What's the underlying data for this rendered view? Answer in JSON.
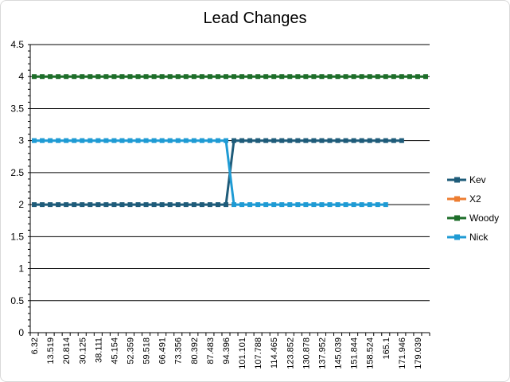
{
  "chart_data": {
    "type": "line",
    "title": "Lead Changes",
    "xlabel": "",
    "ylabel": "",
    "ylim": [
      0,
      4.5
    ],
    "y_ticks": [
      "0",
      "0.5",
      "1",
      "1.5",
      "2",
      "2.5",
      "3",
      "3.5",
      "4",
      "4.5"
    ],
    "x_tick_labels": [
      "6.32",
      "13.519",
      "20.814",
      "30.125",
      "38.111",
      "45.154",
      "52.359",
      "59.518",
      "66.491",
      "73.356",
      "80.392",
      "87.483",
      "94.396",
      "101.101",
      "107.788",
      "114.465",
      "123.852",
      "130.878",
      "137.952",
      "145.039",
      "151.844",
      "158.524",
      "165.1",
      "171.946",
      "179.039"
    ],
    "grid": "horizontal",
    "legend_position": "right",
    "series": [
      {
        "name": "Kev",
        "color": "#1f5c7a",
        "values": [
          2,
          2,
          2,
          2,
          2,
          2,
          2,
          2,
          2,
          2,
          2,
          2,
          2,
          2,
          2,
          2,
          2,
          2,
          2,
          2,
          2,
          2,
          2,
          2,
          2,
          3,
          3,
          3,
          3,
          3,
          3,
          3,
          3,
          3,
          3,
          3,
          3,
          3,
          3,
          3,
          3,
          3,
          3,
          3,
          3,
          3,
          3
        ]
      },
      {
        "name": "X2",
        "color": "#ed7d31",
        "values": []
      },
      {
        "name": "Woody",
        "color": "#1e6e2a",
        "values": [
          4,
          4,
          4,
          4,
          4,
          4,
          4,
          4,
          4,
          4,
          4,
          4,
          4,
          4,
          4,
          4,
          4,
          4,
          4,
          4,
          4,
          4,
          4,
          4,
          4,
          4,
          4,
          4,
          4,
          4,
          4,
          4,
          4,
          4,
          4,
          4,
          4,
          4,
          4,
          4,
          4,
          4,
          4,
          4,
          4,
          4,
          4,
          4,
          4,
          4
        ]
      },
      {
        "name": "Nick",
        "color": "#1f9bd4",
        "values": [
          3,
          3,
          3,
          3,
          3,
          3,
          3,
          3,
          3,
          3,
          3,
          3,
          3,
          3,
          3,
          3,
          3,
          3,
          3,
          3,
          3,
          3,
          3,
          3,
          3,
          2,
          2,
          2,
          2,
          2,
          2,
          2,
          2,
          2,
          2,
          2,
          2,
          2,
          2,
          2,
          2,
          2,
          2,
          2,
          2
        ]
      }
    ]
  }
}
